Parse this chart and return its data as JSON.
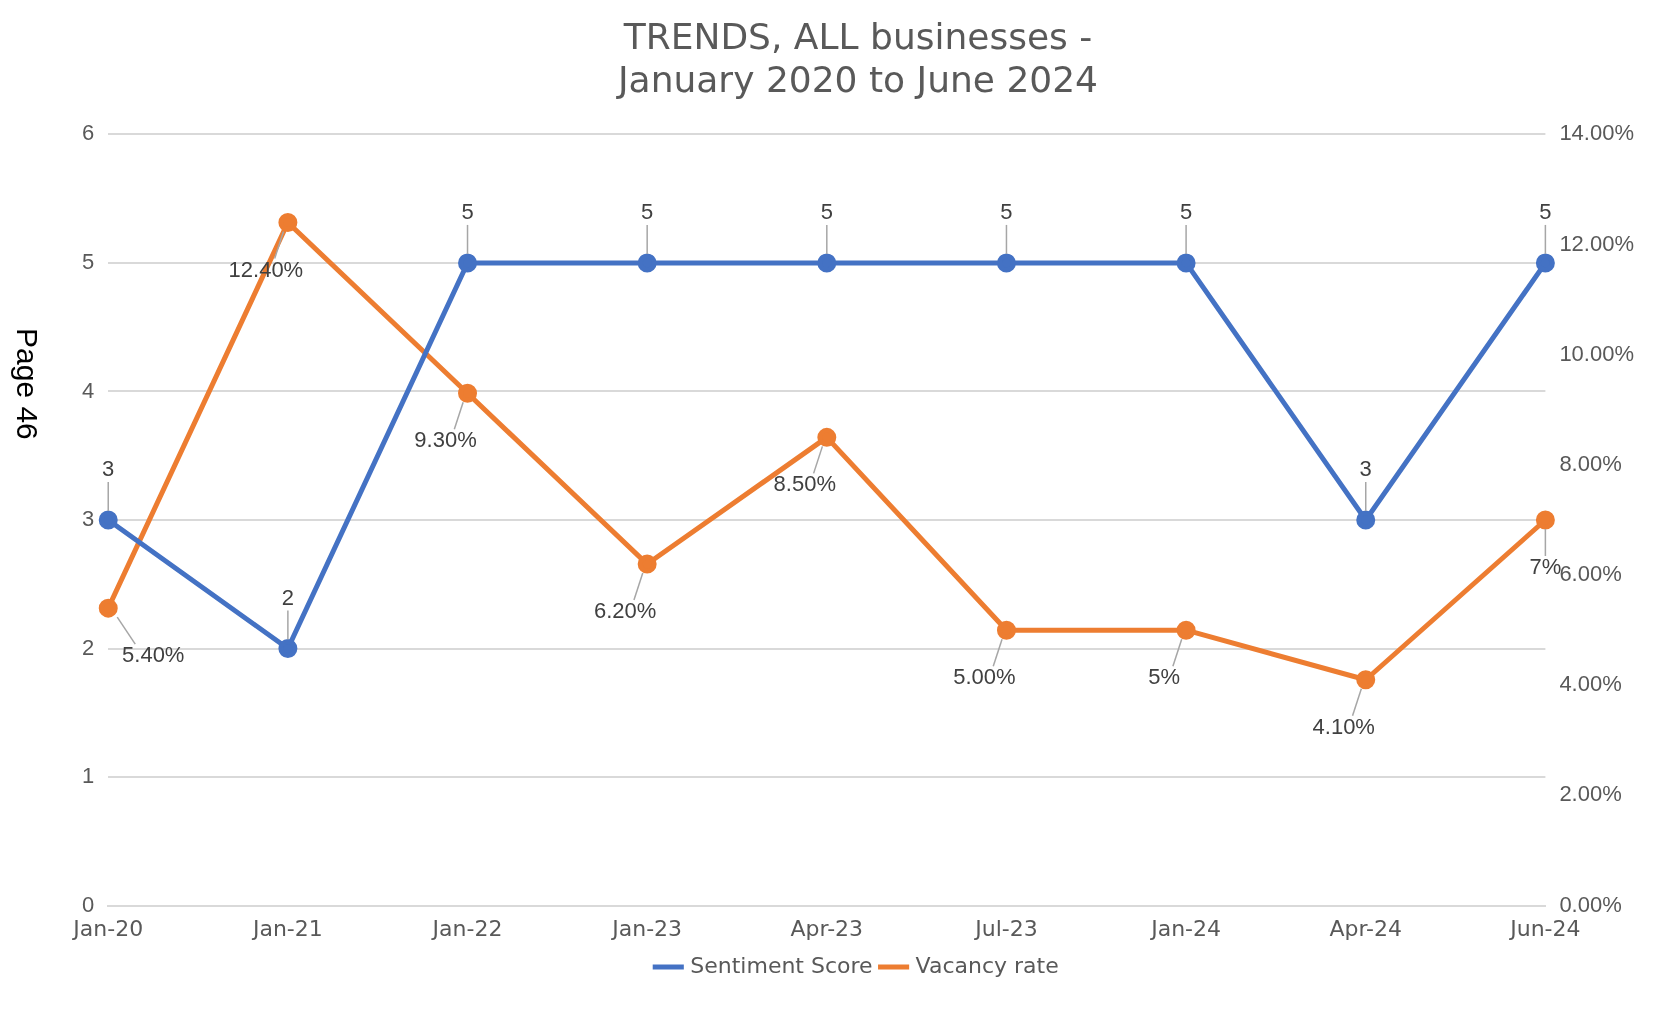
{
  "chart_data": {
    "type": "line",
    "title": "TRENDS, ALL businesses -\nJanuary 2020 to June 2024",
    "categories": [
      "Jan-20",
      "Jan-21",
      "Jan-22",
      "Jan-23",
      "Apr-23",
      "Jul-23",
      "Jan-24",
      "Apr-24",
      "Jun-24"
    ],
    "series": [
      {
        "name": "Sentiment Score",
        "color": "#4472c4",
        "values": [
          3,
          2,
          5,
          5,
          5,
          5,
          5,
          3,
          5
        ],
        "value_labels": [
          "3",
          "2",
          "5",
          "5",
          "5",
          "5",
          "5",
          "3",
          "5"
        ]
      },
      {
        "name": "Vacancy rate",
        "color": "#ed7d31",
        "axis": "y2",
        "values": [
          5.4,
          12.4,
          9.3,
          6.2,
          8.5,
          5.0,
          5,
          4.1,
          7
        ],
        "value_labels": [
          "5.40%",
          "12.40%",
          "9.30%",
          "6.20%",
          "8.50%",
          "5.00%",
          "5%",
          "4.10%",
          "7%"
        ]
      }
    ],
    "ylim": [
      0,
      6
    ],
    "yticks": [
      0,
      1,
      2,
      3,
      4,
      5,
      6
    ],
    "y2lim": [
      0,
      14
    ],
    "y2ticks": [
      {
        "value": 0,
        "label": "0.00%"
      },
      {
        "value": 2,
        "label": "2.00%"
      },
      {
        "value": 4,
        "label": "4.00%"
      },
      {
        "value": 6,
        "label": "6.00%"
      },
      {
        "value": 8,
        "label": "8.00%"
      },
      {
        "value": 10,
        "label": "10.00%"
      },
      {
        "value": 12,
        "label": "12.00%"
      },
      {
        "value": 14,
        "label": "14.00%"
      }
    ],
    "grid": "y",
    "legend": "bottom",
    "marker": "circle",
    "line_style": "solid",
    "annotations": [
      "Page 46"
    ]
  }
}
